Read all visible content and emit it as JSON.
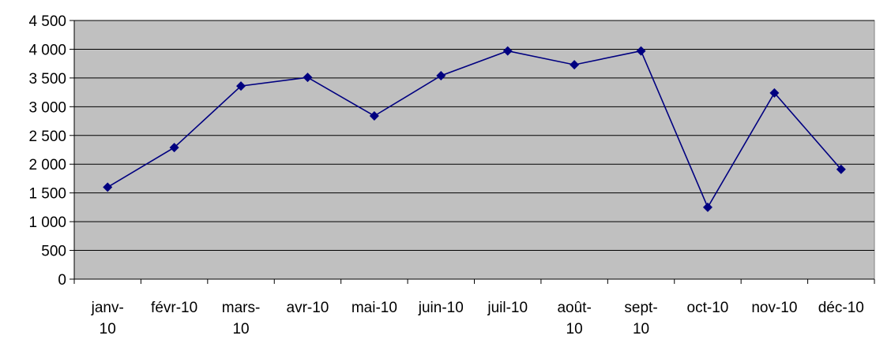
{
  "chart_data": {
    "type": "line",
    "categories": [
      [
        "janv-",
        "10"
      ],
      [
        "févr-10"
      ],
      [
        "mars-",
        "10"
      ],
      [
        "avr-10"
      ],
      [
        "mai-10"
      ],
      [
        "juin-10"
      ],
      [
        "juil-10"
      ],
      [
        "août-",
        "10"
      ],
      [
        "sept-",
        "10"
      ],
      [
        "oct-10"
      ],
      [
        "nov-10"
      ],
      [
        "déc-10"
      ]
    ],
    "values": [
      1600,
      2290,
      3360,
      3510,
      2840,
      3540,
      3970,
      3730,
      3970,
      1250,
      3240,
      1910
    ],
    "yticks": [
      "0",
      "500",
      "1 000",
      "1 500",
      "2 000",
      "2 500",
      "3 000",
      "3 500",
      "4 000",
      "4 500"
    ],
    "ylim": [
      0,
      4500
    ],
    "ystep": 500,
    "grid": true,
    "legend": "none",
    "colors": {
      "plot_background": "#c0c0c0",
      "line": "#000080",
      "marker": "#000080",
      "grid": "#000000"
    }
  }
}
